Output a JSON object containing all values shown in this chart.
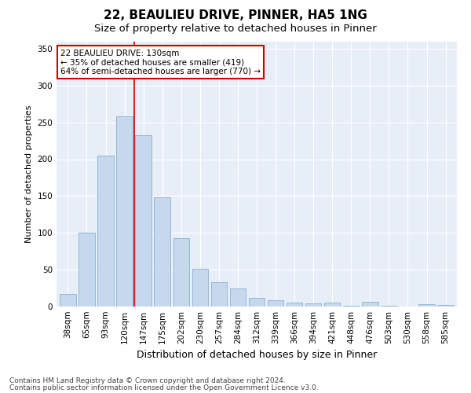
{
  "title1": "22, BEAULIEU DRIVE, PINNER, HA5 1NG",
  "title2": "Size of property relative to detached houses in Pinner",
  "xlabel": "Distribution of detached houses by size in Pinner",
  "ylabel": "Number of detached properties",
  "categories": [
    "38sqm",
    "65sqm",
    "93sqm",
    "120sqm",
    "147sqm",
    "175sqm",
    "202sqm",
    "230sqm",
    "257sqm",
    "284sqm",
    "312sqm",
    "339sqm",
    "366sqm",
    "394sqm",
    "421sqm",
    "448sqm",
    "476sqm",
    "503sqm",
    "530sqm",
    "558sqm",
    "585sqm"
  ],
  "values": [
    17,
    100,
    205,
    258,
    233,
    148,
    93,
    51,
    33,
    25,
    12,
    9,
    5,
    4,
    5,
    1,
    6,
    1,
    0,
    3,
    2
  ],
  "bar_color": "#c5d8ed",
  "bar_edge_color": "#8ab0d0",
  "bar_width": 0.85,
  "vline_x": 3.5,
  "vline_color": "#cc0000",
  "annotation_text": "22 BEAULIEU DRIVE: 130sqm\n← 35% of detached houses are smaller (419)\n64% of semi-detached houses are larger (770) →",
  "annotation_box_color": "#ffffff",
  "annotation_box_edge": "#cc0000",
  "ylim": [
    0,
    360
  ],
  "yticks": [
    0,
    50,
    100,
    150,
    200,
    250,
    300,
    350
  ],
  "footnote1": "Contains HM Land Registry data © Crown copyright and database right 2024.",
  "footnote2": "Contains public sector information licensed under the Open Government Licence v3.0.",
  "plot_bg_color": "#e8eef8",
  "title1_fontsize": 11,
  "title2_fontsize": 9.5,
  "xlabel_fontsize": 9,
  "ylabel_fontsize": 8,
  "tick_fontsize": 7.5,
  "footnote_fontsize": 6.5,
  "grid_color": "#ffffff"
}
